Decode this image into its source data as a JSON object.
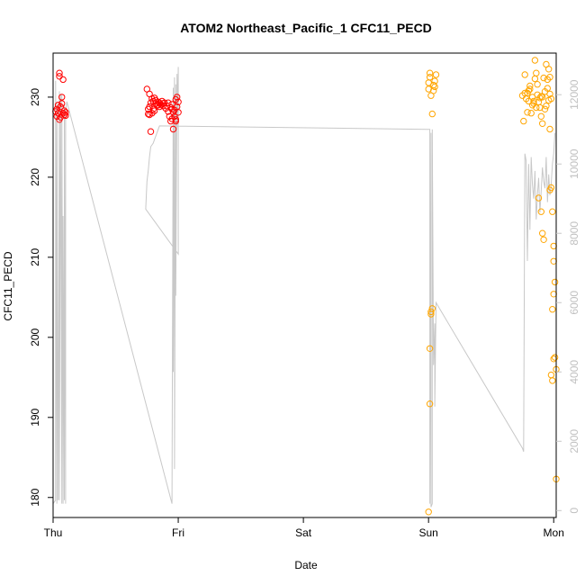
{
  "chart_data": {
    "type": "scatter",
    "title": "ATOM2 Northeast_Pacific_1 CFC11_PECD",
    "xlabel": "Date",
    "ylabel": "CFC11_PECD",
    "xlim": [
      0,
      4.02
    ],
    "ylim": [
      177.5,
      235.5
    ],
    "y2lim": [
      -200,
      13200
    ],
    "x_ticks": [
      {
        "value": 0,
        "label": "Thu"
      },
      {
        "value": 1,
        "label": "Fri"
      },
      {
        "value": 2,
        "label": "Sat"
      },
      {
        "value": 3,
        "label": "Sun"
      },
      {
        "value": 4,
        "label": "Mon"
      }
    ],
    "y_ticks": [
      180,
      190,
      200,
      210,
      220,
      230
    ],
    "y2_ticks": [
      0,
      2000,
      4000,
      6000,
      8000,
      10000,
      12000
    ],
    "colors": {
      "series_red": "#ff0000",
      "series_orange": "#ffa500",
      "secondary_line": "#c8c8c8"
    },
    "series": [
      {
        "color": "red",
        "x": [
          0.02,
          0.03,
          0.03,
          0.04,
          0.04,
          0.05,
          0.05,
          0.05,
          0.06,
          0.06,
          0.07,
          0.07,
          0.08,
          0.08,
          0.09,
          0.09,
          0.1,
          0.1,
          0.75,
          0.76,
          0.77,
          0.77,
          0.78,
          0.78,
          0.79,
          0.8,
          0.8,
          0.81,
          0.82,
          0.82,
          0.83,
          0.84,
          0.85,
          0.85,
          0.86,
          0.87,
          0.88,
          0.89,
          0.9,
          0.91,
          0.92,
          0.93,
          0.94,
          0.94,
          0.95,
          0.95,
          0.96,
          0.96,
          0.97,
          0.97,
          0.98,
          0.98,
          0.99,
          0.99,
          1.0,
          1.0,
          0.76,
          0.77,
          0.79,
          0.81,
          0.84,
          0.88,
          0.92,
          0.95,
          0.98
        ],
        "y": [
          228.2,
          227.6,
          228.5,
          229.0,
          228.0,
          233.0,
          232.6,
          227.2,
          227.5,
          228.8,
          230.0,
          229.2,
          232.2,
          228.0,
          227.8,
          228.3,
          227.7,
          228.1,
          231.0,
          228.5,
          227.8,
          230.4,
          225.7,
          229.3,
          229.8,
          229.5,
          228.5,
          229.9,
          229.2,
          229.6,
          229.0,
          229.4,
          228.8,
          229.3,
          229.1,
          229.5,
          229.2,
          229.3,
          228.6,
          228.9,
          228.2,
          227.6,
          227.0,
          228.7,
          229.1,
          227.3,
          228.1,
          226.0,
          227.6,
          228.4,
          229.7,
          227.0,
          228.8,
          230.0,
          228.1,
          229.4,
          227.9,
          228.8,
          228.0,
          228.3,
          229.0,
          228.9,
          229.3,
          228.5,
          227.2
        ]
      },
      {
        "color": "orange",
        "x": [
          3.0,
          3.01,
          3.01,
          3.02,
          3.02,
          3.03,
          3.03,
          3.04,
          3.04,
          3.05,
          3.05,
          3.06,
          3.0,
          3.01,
          3.01,
          3.02,
          3.0,
          3.75,
          3.76,
          3.77,
          3.78,
          3.79,
          3.8,
          3.81,
          3.82,
          3.83,
          3.84,
          3.85,
          3.86,
          3.87,
          3.88,
          3.89,
          3.9,
          3.91,
          3.92,
          3.93,
          3.94,
          3.95,
          3.96,
          3.97,
          3.98,
          3.77,
          3.79,
          3.81,
          3.83,
          3.85,
          3.87,
          3.89,
          3.91,
          3.93,
          3.95,
          3.97,
          3.88,
          3.9,
          3.91,
          3.92,
          3.97,
          3.98,
          3.99,
          4.0,
          4.0,
          4.01,
          4.0,
          3.99,
          4.0,
          4.01,
          4.02,
          3.98,
          3.99,
          3.97,
          4.02,
          3.8,
          3.84,
          3.86,
          3.9,
          3.94,
          3.96
        ],
        "y": [
          178.2,
          191.7,
          198.6,
          202.9,
          203.2,
          203.6,
          227.9,
          230.8,
          231.5,
          232.0,
          231.3,
          232.8,
          231.8,
          232.5,
          233.0,
          230.2,
          231.0,
          230.2,
          227.0,
          232.8,
          229.8,
          230.5,
          229.5,
          231.4,
          228.0,
          230.0,
          229.2,
          232.3,
          233.0,
          231.6,
          229.4,
          228.7,
          227.6,
          230.0,
          232.4,
          230.7,
          234.1,
          232.2,
          233.5,
          232.5,
          229.8,
          230.5,
          228.1,
          231.0,
          229.0,
          234.6,
          230.3,
          229.9,
          226.7,
          228.5,
          231.1,
          230.4,
          217.4,
          215.7,
          213.0,
          212.2,
          218.4,
          218.7,
          215.7,
          211.4,
          209.5,
          206.9,
          205.4,
          203.5,
          197.3,
          197.5,
          196.0,
          195.3,
          194.6,
          226.0,
          182.3,
          230.8,
          229.5,
          228.7,
          230.1,
          228.9,
          229.6
        ]
      }
    ],
    "secondary_line": {
      "color": "grey",
      "axis": "right",
      "x": [
        0.0,
        0.02,
        0.02,
        0.03,
        0.03,
        0.04,
        0.05,
        0.05,
        0.06,
        0.07,
        0.07,
        0.08,
        0.08,
        0.09,
        0.09,
        0.1,
        0.1,
        0.11,
        0.95,
        0.96,
        0.96,
        0.97,
        0.97,
        0.98,
        0.98,
        0.99,
        0.99,
        1.0,
        1.0,
        0.74,
        0.75,
        0.76,
        0.77,
        0.78,
        0.8,
        0.82,
        0.85,
        2.99,
        3.0,
        3.01,
        3.01,
        3.02,
        3.02,
        3.03,
        3.03,
        3.04,
        3.05,
        3.05,
        3.06,
        3.75,
        3.76,
        3.77,
        3.78,
        3.79,
        3.8,
        3.81,
        3.82,
        3.83,
        3.84,
        3.85,
        3.86,
        3.87,
        3.88,
        3.89,
        3.9,
        3.91,
        3.92,
        3.93,
        3.94,
        3.95,
        3.96,
        3.97,
        3.98,
        3.99,
        4.0,
        4.01
      ],
      "y": [
        200,
        300,
        12400,
        200,
        11800,
        300,
        12100,
        300,
        12000,
        200,
        12000,
        200,
        8500,
        300,
        11700,
        200,
        11500,
        11800,
        200,
        12200,
        4000,
        12500,
        1200,
        12300,
        6200,
        12600,
        11000,
        12800,
        7400,
        8700,
        9500,
        9800,
        10200,
        10500,
        10600,
        10800,
        11100,
        11000,
        11000,
        11000,
        200,
        10900,
        100,
        200,
        11000,
        4200,
        5400,
        3000,
        6000,
        1800,
        1700,
        10300,
        10100,
        7200,
        10000,
        8100,
        10200,
        9400,
        9000,
        9800,
        8400,
        9100,
        9600,
        8600,
        9200,
        9900,
        9500,
        9300,
        10200,
        8900,
        9700,
        9100,
        9400,
        10000,
        10300,
        10900
      ]
    }
  }
}
